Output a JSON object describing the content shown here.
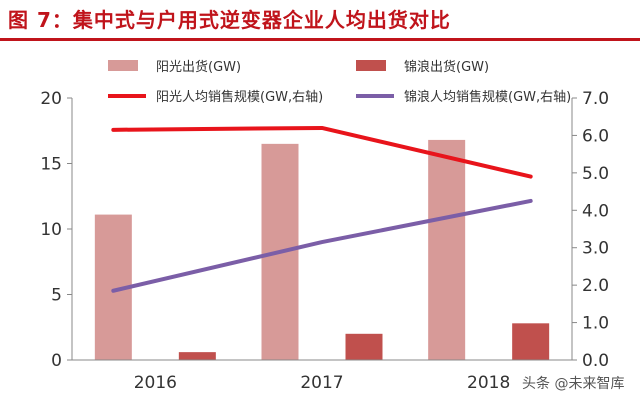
{
  "title": "图 7：集中式与户用式逆变器企业人均出货对比",
  "watermark": "头条 @未来智库",
  "chart_data": {
    "type": "bar+line",
    "categories": [
      "2016",
      "2017",
      "2018"
    ],
    "bars": [
      {
        "name": "阳光出货(GW)",
        "values": [
          11.1,
          16.5,
          16.8
        ],
        "color": "#d79a98"
      },
      {
        "name": "锦浪出货(GW)",
        "values": [
          0.6,
          2.0,
          2.8
        ],
        "color": "#c0504d"
      }
    ],
    "lines": [
      {
        "name": "阳光人均销售规模(GW,右轴)",
        "values": [
          6.15,
          6.2,
          4.9
        ],
        "color": "#e8141b"
      },
      {
        "name": "锦浪人均销售规模(GW,右轴)",
        "values": [
          1.85,
          3.15,
          4.25
        ],
        "color": "#7b5ea7"
      }
    ],
    "y_left": {
      "min": 0,
      "max": 20,
      "ticks": [
        "0",
        "5",
        "10",
        "15",
        "20"
      ]
    },
    "y_right": {
      "min": 0,
      "max": 7,
      "ticks": [
        "0.0",
        "1.0",
        "2.0",
        "3.0",
        "4.0",
        "5.0",
        "6.0",
        "7.0"
      ]
    },
    "legend_position": "top"
  }
}
